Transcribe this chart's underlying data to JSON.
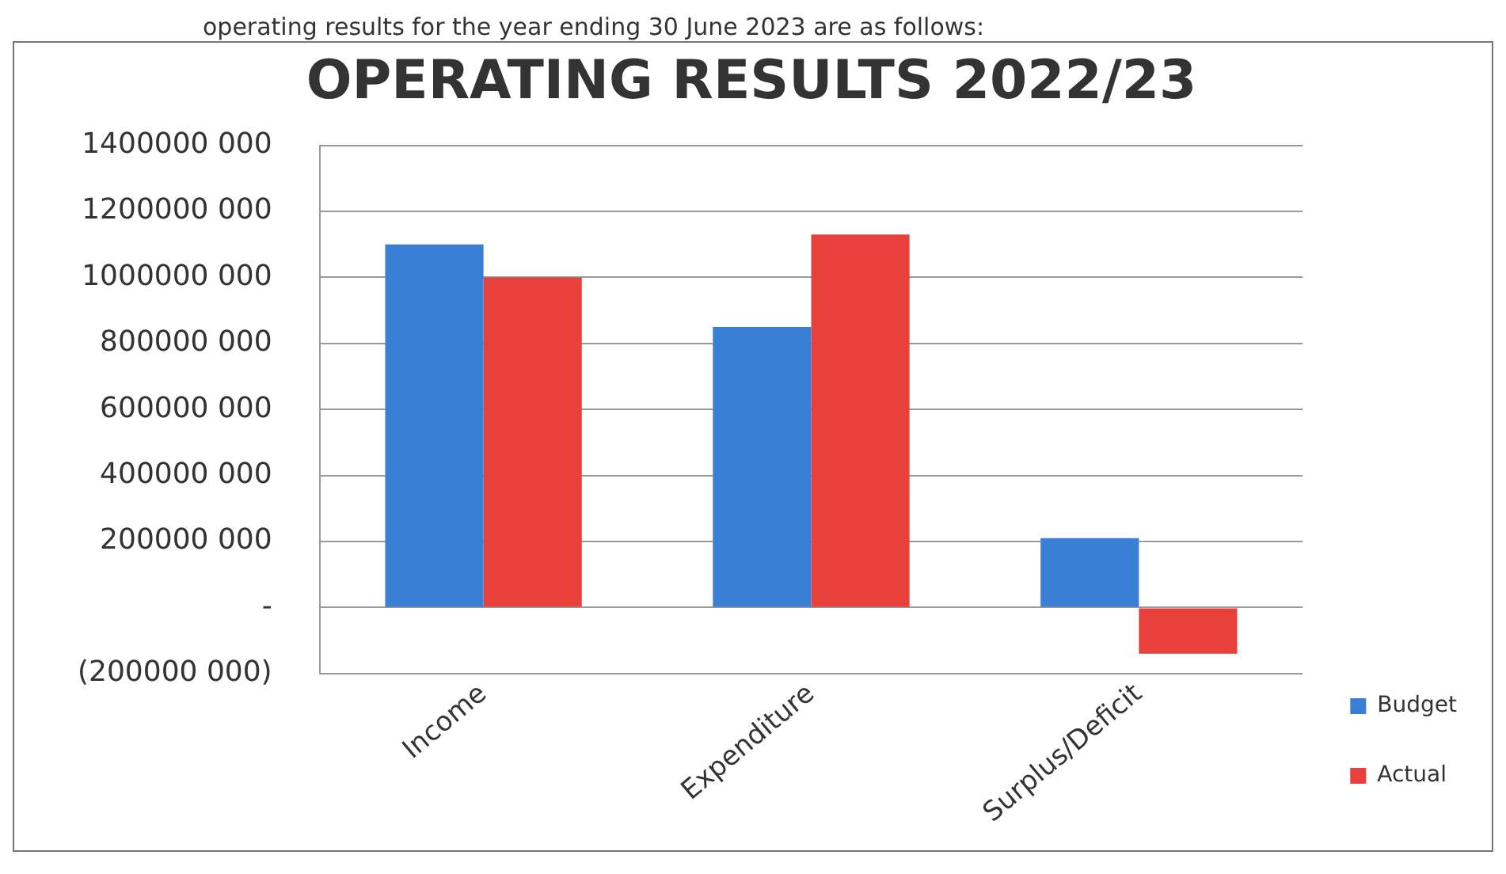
{
  "chart_data": {
    "type": "bar",
    "title": "OPERATING RESULTS 2022/23",
    "annotations": [
      "operating results for the year ending 30 June 2023 are as follows:"
    ],
    "categories": [
      "Income",
      "Expenditure",
      "Surplus/Deficit"
    ],
    "series": [
      {
        "name": "Budget",
        "color": "#3a7fd6",
        "values": [
          1100000000,
          850000000,
          210000000
        ]
      },
      {
        "name": "Actual",
        "color": "#e8413c",
        "values": [
          1000000000,
          1130000000,
          -140000000
        ]
      }
    ],
    "ylim": [
      -200000000,
      1400000000
    ],
    "yticks": [
      {
        "value": -200000000,
        "label": "(200000 000)"
      },
      {
        "value": 0,
        "label": "-"
      },
      {
        "value": 200000000,
        "label": "200000 000"
      },
      {
        "value": 400000000,
        "label": "400000 000"
      },
      {
        "value": 600000000,
        "label": "600000 000"
      },
      {
        "value": 800000000,
        "label": "800000 000"
      },
      {
        "value": 1000000000,
        "label": "1000000 000"
      },
      {
        "value": 1200000000,
        "label": "1200000 000"
      },
      {
        "value": 1400000000,
        "label": "1400000 000"
      }
    ],
    "grid": "y",
    "legend": "right"
  }
}
